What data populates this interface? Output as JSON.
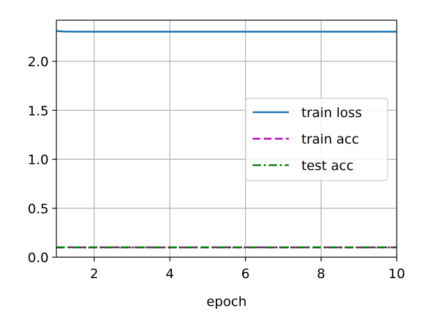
{
  "chart_data": {
    "type": "line",
    "title": "",
    "xlabel": "epoch",
    "ylabel": "",
    "xlim": [
      1,
      10
    ],
    "ylim": [
      0,
      2.42
    ],
    "grid": true,
    "legend_position": "center-right",
    "x_ticks": [
      2,
      4,
      6,
      8,
      10
    ],
    "x_tick_labels": [
      "2",
      "4",
      "6",
      "8",
      "10"
    ],
    "y_ticks": [
      0.0,
      0.5,
      1.0,
      1.5,
      2.0
    ],
    "y_tick_labels": [
      "0.0",
      "0.5",
      "1.0",
      "1.5",
      "2.0"
    ],
    "x": [
      1,
      1.2,
      1.4,
      1.6,
      1.8,
      2,
      3,
      4,
      5,
      6,
      7,
      8,
      9,
      10
    ],
    "series": [
      {
        "name": "train loss",
        "color": "#1f77b4",
        "style": "solid",
        "values": [
          2.31,
          2.305,
          2.304,
          2.303,
          2.303,
          2.303,
          2.303,
          2.303,
          2.303,
          2.303,
          2.303,
          2.303,
          2.303,
          2.303
        ]
      },
      {
        "name": "train acc",
        "color": "#bf00bf",
        "style": "dashed",
        "values": [
          0.1,
          0.101,
          0.102,
          0.101,
          0.1,
          0.101,
          0.101,
          0.1,
          0.101,
          0.101,
          0.1,
          0.101,
          0.1,
          0.101
        ]
      },
      {
        "name": "test acc",
        "color": "#008000",
        "style": "dashdot",
        "values": [
          0.1,
          0.1,
          0.1,
          0.1,
          0.1,
          0.1,
          0.1,
          0.1,
          0.1,
          0.1,
          0.1,
          0.1,
          0.1,
          0.1
        ]
      }
    ]
  }
}
